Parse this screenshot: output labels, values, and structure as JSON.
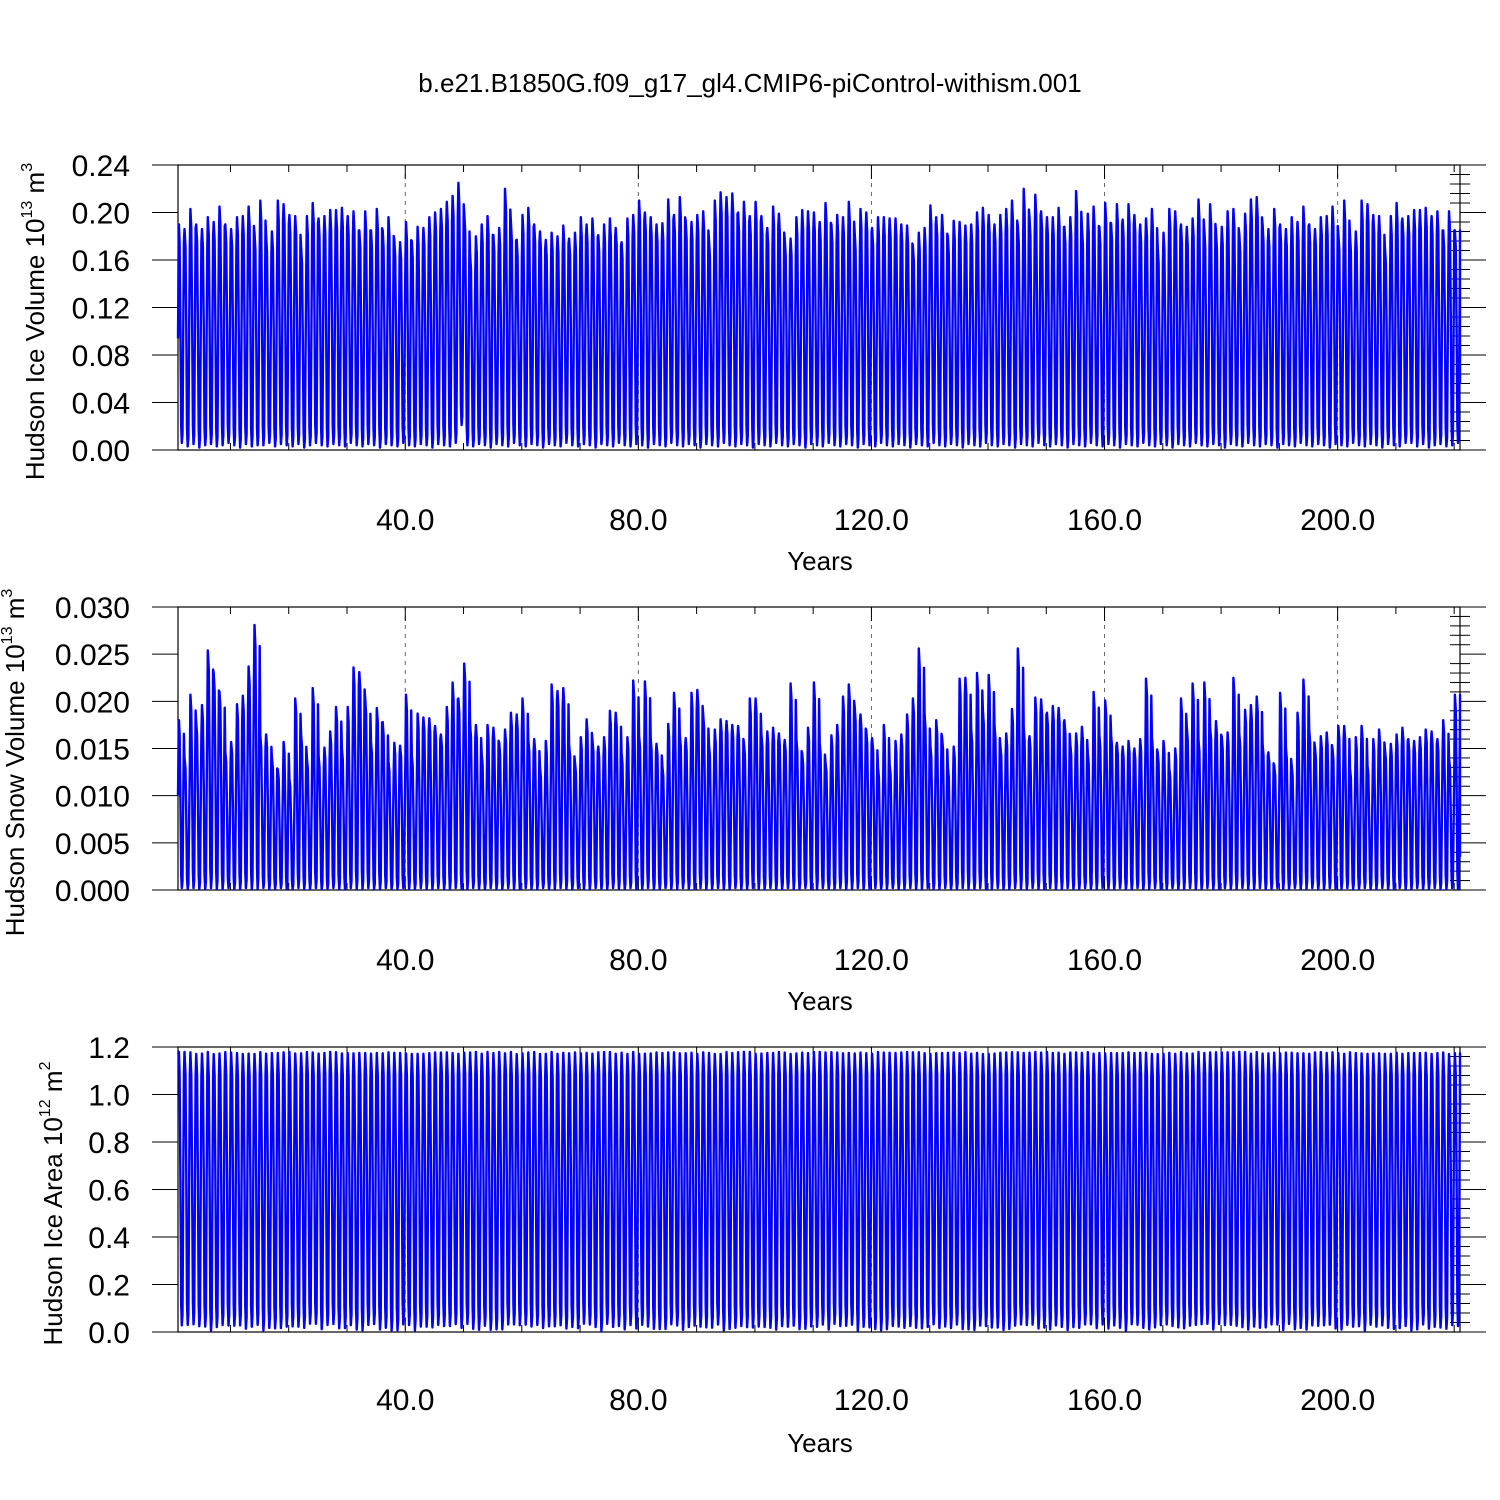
{
  "title": "b.e21.B1850G.f09_g17_gl4.CMIP6-piControl-withism.001",
  "colors": {
    "series": "#0000ff",
    "axes": "#000000",
    "grid": "#666666"
  },
  "chart_data": [
    {
      "type": "line",
      "title": "",
      "ylabel": {
        "text": "Hudson Ice Volume 10",
        "exp": "13",
        "unit": " m",
        "unit_exp": "3"
      },
      "xlabel": "Years",
      "xlim": [
        1,
        221
      ],
      "ylim": [
        0,
        0.24
      ],
      "yticks": [
        "0.00",
        "0.04",
        "0.08",
        "0.12",
        "0.16",
        "0.20",
        "0.24"
      ],
      "xticks": [
        "40.0",
        "80.0",
        "120.0",
        "160.0",
        "200.0"
      ],
      "grid": "dashed vertical at major x ticks",
      "series": [
        {
          "cycle": "annual",
          "start_value": 0.094,
          "end_value": 0.056,
          "annual_max": [
            0.19,
            0.186,
            0.203,
            0.19,
            0.186,
            0.196,
            0.192,
            0.205,
            0.19,
            0.186,
            0.196,
            0.197,
            0.205,
            0.183,
            0.21,
            0.181,
            0.184,
            0.21,
            0.207,
            0.198,
            0.197,
            0.171,
            0.197,
            0.208,
            0.195,
            0.197,
            0.202,
            0.202,
            0.204,
            0.197,
            0.201,
            0.185,
            0.201,
            0.185,
            0.203,
            0.185,
            0.196,
            0.177,
            0.175,
            0.192,
            0.176,
            0.188,
            0.187,
            0.196,
            0.2,
            0.203,
            0.209,
            0.214,
            0.225,
            0.2,
            0.165,
            0.18,
            0.19,
            0.197,
            0.181,
            0.187,
            0.22,
            0.192,
            0.177,
            0.198,
            0.204,
            0.19,
            0.184,
            0.177,
            0.183,
            0.18,
            0.189,
            0.178,
            0.183,
            0.196,
            0.19,
            0.195,
            0.181,
            0.19,
            0.195,
            0.187,
            0.175,
            0.195,
            0.198,
            0.21,
            0.2,
            0.196,
            0.19,
            0.191,
            0.211,
            0.198,
            0.213,
            0.193,
            0.192,
            0.198,
            0.201,
            0.177,
            0.21,
            0.217,
            0.213,
            0.216,
            0.2,
            0.209,
            0.197,
            0.209,
            0.197,
            0.187,
            0.205,
            0.199,
            0.178,
            0.178,
            0.196,
            0.202,
            0.201,
            0.2,
            0.192,
            0.208,
            0.19,
            0.198,
            0.196,
            0.209,
            0.183,
            0.203,
            0.2,
            0.187,
            0.196,
            0.196,
            0.195,
            0.195,
            0.19,
            0.189,
            0.172,
            0.183,
            0.187,
            0.206,
            0.196,
            0.198,
            0.179,
            0.193,
            0.192,
            0.189,
            0.19,
            0.2,
            0.204,
            0.198,
            0.19,
            0.198,
            0.203,
            0.21,
            0.189,
            0.22,
            0.196,
            0.215,
            0.201,
            0.196,
            0.196,
            0.204,
            0.188,
            0.196,
            0.218,
            0.188,
            0.199,
            0.205,
            0.188,
            0.208,
            0.191,
            0.207,
            0.194,
            0.207,
            0.198,
            0.19,
            0.195,
            0.203,
            0.171,
            0.183,
            0.203,
            0.201,
            0.19,
            0.188,
            0.195,
            0.211,
            0.186,
            0.207,
            0.184,
            0.188,
            0.201,
            0.203,
            0.182,
            0.199,
            0.211,
            0.213
          ],
          "annual_min": [
            0.006,
            0.003,
            0.005,
            0.002,
            0.004,
            0.005,
            0.003,
            0.004,
            0.006,
            0.004,
            0.002,
            0.005,
            0.003,
            0.004,
            0.004,
            0.006,
            0.003,
            0.005,
            0.004,
            0.003,
            0.005,
            0.002,
            0.004,
            0.006,
            0.004,
            0.003,
            0.005,
            0.004,
            0.003,
            0.006,
            0.004,
            0.003,
            0.005,
            0.004,
            0.002,
            0.005,
            0.004,
            0.003,
            0.006,
            0.004,
            0.003,
            0.005,
            0.004,
            0.002,
            0.005,
            0.004,
            0.003,
            0.006,
            0.021,
            0.004,
            0.003,
            0.005,
            0.004,
            0.002,
            0.005,
            0.004,
            0.003,
            0.006,
            0.004,
            0.003,
            0.005,
            0.004,
            0.002,
            0.005,
            0.004,
            0.003,
            0.006,
            0.004,
            0.003,
            0.005,
            0.004,
            0.002,
            0.005,
            0.004,
            0.003,
            0.006,
            0.004,
            0.003,
            0.005,
            0.004,
            0.002,
            0.005,
            0.004,
            0.003,
            0.006,
            0.004,
            0.003,
            0.005,
            0.004,
            0.002,
            0.005,
            0.004,
            0.003,
            0.006,
            0.004,
            0.003,
            0.005,
            0.004,
            0.002,
            0.005,
            0.004,
            0.003,
            0.006,
            0.004,
            0.003,
            0.005,
            0.004,
            0.002,
            0.005,
            0.004,
            0.003,
            0.006,
            0.004,
            0.003,
            0.005,
            0.004,
            0.002,
            0.005,
            0.004,
            0.003,
            0.006,
            0.004,
            0.003,
            0.005,
            0.004,
            0.002,
            0.005,
            0.004,
            0.003,
            0.006,
            0.004,
            0.003,
            0.005,
            0.004,
            0.002,
            0.005,
            0.004,
            0.003,
            0.006,
            0.004,
            0.003,
            0.005,
            0.004,
            0.002,
            0.005,
            0.004,
            0.003,
            0.006,
            0.004,
            0.003,
            0.005,
            0.004,
            0.002,
            0.005,
            0.004,
            0.003,
            0.006,
            0.004,
            0.003,
            0.005,
            0.004,
            0.002,
            0.005,
            0.004,
            0.003,
            0.006,
            0.004,
            0.003,
            0.005,
            0.004,
            0.002,
            0.005,
            0.004,
            0.003,
            0.006,
            0.004,
            0.003,
            0.005,
            0.004,
            0.002,
            0.005,
            0.004,
            0.003,
            0.006,
            0.004,
            0.003,
            0.005,
            0.004,
            0.002,
            0.005,
            0.004,
            0.003,
            0.006,
            0.004,
            0.003,
            0.005,
            0.004,
            0.002,
            0.005,
            0.004,
            0.003,
            0.006,
            0.004,
            0.003,
            0.005,
            0.004,
            0.002,
            0.005,
            0.004,
            0.003,
            0.006
          ]
        }
      ]
    },
    {
      "type": "line",
      "title": "",
      "ylabel": {
        "text": "Hudson Snow Volume 10",
        "exp": "13",
        "unit": " m",
        "unit_exp": "3"
      },
      "xlabel": "Years",
      "xlim": [
        1,
        221
      ],
      "ylim": [
        0,
        0.03
      ],
      "yticks": [
        "0.000",
        "0.005",
        "0.010",
        "0.015",
        "0.020",
        "0.025",
        "0.030"
      ],
      "xticks": [
        "40.0",
        "80.0",
        "120.0",
        "160.0",
        "200.0"
      ],
      "grid": "dashed vertical at major x ticks",
      "series": [
        {
          "cycle": "annual",
          "start_value": 0.01,
          "end_value": 0.0035,
          "annual_max": [
            0.018,
            0.014,
            0.0207,
            0.0178,
            0.0196,
            0.0254,
            0.023,
            0.021,
            0.0147,
            0.0157,
            0.0197,
            0.0206,
            0.0237,
            0.0281,
            0.0164,
            0.0165,
            0.014,
            0.0128,
            0.0157,
            0.0118,
            0.0203,
            0.0165,
            0.014,
            0.0214,
            0.0142,
            0.0151,
            0.0168,
            0.0194,
            0.015,
            0.0194,
            0.0236,
            0.0231,
            0.0203,
            0.0157,
            0.0193,
            0.0178,
            0.0136,
            0.0156,
            0.0153,
            0.0207,
            0.0143,
            0.0187,
            0.0183,
            0.0182,
            0.0174,
            0.0165,
            0.0194,
            0.022,
            0.0203,
            0.024,
            0.0176,
            0.0175,
            0.0144,
            0.0175,
            0.0172,
            0.0156,
            0.017,
            0.0188,
            0.0186,
            0.0203,
            0.0159,
            0.016,
            0.013,
            0.0158,
            0.0218,
            0.0211,
            0.0214,
            0.0154,
            0.0135,
            0.0162,
            0.0181,
            0.0159,
            0.0152,
            0.0162,
            0.019,
            0.0188,
            0.0145,
            0.0162,
            0.0222,
            0.0164,
            0.0221,
            0.016,
            0.0155,
            0.0131,
            0.0176,
            0.0209,
            0.0165,
            0.0161,
            0.0209,
            0.0212,
            0.0186,
            0.0154,
            0.017,
            0.0181,
            0.0179,
            0.0175,
            0.0174,
            0.0156,
            0.0203,
            0.0203,
            0.0165,
            0.0168,
            0.0172,
            0.0166,
            0.0159,
            0.0219,
            0.016,
            0.0145,
            0.0172,
            0.022,
            0.0156,
            0.0135,
            0.0164,
            0.0175,
            0.0205,
            0.0218,
            0.0194,
            0.0186,
            0.0169,
            0.0161,
            0.013,
            0.0175,
            0.0133,
            0.0158,
            0.0165,
            0.0186,
            0.0203,
            0.0256,
            0.0186,
            0.0153,
            0.018,
            0.0162,
            0.013,
            0.0152,
            0.0224,
            0.0225,
            0.017,
            0.023,
            0.019,
            0.0228,
            0.0175,
            0.0154,
            0.0166,
            0.0192,
            0.0256,
            0.0172,
            0.0163,
            0.0204,
            0.0202,
            0.0188,
            0.0195,
            0.0193,
            0.018,
            0.0155,
            0.0166,
            0.0173,
            0.0145,
            0.021,
            0.0164,
            0.0201,
            0.0165,
            0.0156,
            0.0152,
            0.0158,
            0.015,
            0.016,
            0.0224,
            0.0162,
            0.0146,
            0.0158,
            0.0129,
            0.015,
            0.0203,
            0.0173,
            0.0219,
            0.0159,
            0.022,
            0.0173,
            0.0179,
            0.0162,
            0.0167,
            0.0225,
            0.0166,
            0.0191,
            0.0196,
            0.0205,
            0.0155,
            0.0146,
            0.0132,
            0.0209,
            0.0151,
            0.0132,
            0.0188,
            0.0223,
            0.017,
            0.0151,
            0.0163,
            0.0167,
            0.015,
            0.0174,
            0.0174,
            0.0129,
            0.0162,
            0.0174,
            0.0132,
            0.016,
            0.017,
            0.015,
            0.0155,
            0.0165,
            0.0172,
            0.016,
            0.0158,
            0.0162,
            0.017,
            0.0168,
            0.016
          ],
          "annual_min": [
            0.0002,
            0.0001,
            0.0002,
            0.0001,
            0.0001,
            0.0002,
            0.0001,
            0.0001,
            0.0002,
            0.0001,
            0.0001,
            0.0002,
            0.0001,
            0.0001,
            0.0002,
            0.0001,
            0.0001,
            0.0002,
            0.0001,
            0.0001,
            0.0002,
            0.0001,
            0.0001,
            0.0002,
            0.0001,
            0.0001,
            0.0002,
            0.0001,
            0.0001,
            0.0002,
            0.0001,
            0.0001,
            0.0002,
            0.0001,
            0.0001,
            0.0002,
            0.0001,
            0.0001,
            0.0002,
            0.0001,
            0.0001,
            0.0002,
            0.0001,
            0.0001,
            0.0002,
            0.0001,
            0.0001,
            0.0002,
            0.0001,
            0.0001,
            0.0002,
            0.0001,
            0.0001,
            0.0002,
            0.0001,
            0.0001,
            0.0002,
            0.0001,
            0.0001,
            0.0002,
            0.0001,
            0.0001,
            0.0002,
            0.0001,
            0.0001,
            0.0002,
            0.0001,
            0.0001,
            0.0002,
            0.0001,
            0.0001,
            0.0002,
            0.0001,
            0.0001,
            0.0002,
            0.0001,
            0.0001,
            0.0002,
            0.0001,
            0.0001,
            0.0002,
            0.0001,
            0.0001,
            0.0002,
            0.0001,
            0.0001,
            0.0002,
            0.0001,
            0.0001,
            0.0002,
            0.0001,
            0.0001,
            0.0002,
            0.0001,
            0.0001,
            0.0002,
            0.0001,
            0.0001,
            0.0002,
            0.0001,
            0.0001,
            0.0002,
            0.0001,
            0.0001,
            0.0002,
            0.0001,
            0.0001,
            0.0002,
            0.0001,
            0.0001,
            0.0002,
            0.0001,
            0.0001,
            0.0002,
            0.0001,
            0.0001,
            0.0002,
            0.0001,
            0.0001,
            0.0002,
            0.0001,
            0.0001,
            0.0002,
            0.0001,
            0.0001,
            0.0002,
            0.0001,
            0.0001,
            0.0002,
            0.0001,
            0.0001,
            0.0002,
            0.0001,
            0.0001,
            0.0002,
            0.0001,
            0.0001,
            0.0002,
            0.0001,
            0.0001,
            0.0002,
            0.0001,
            0.0001,
            0.0002,
            0.0001,
            0.0001,
            0.0002,
            0.0001,
            0.0001,
            0.0002,
            0.0001,
            0.0001,
            0.0002,
            0.0001,
            0.0001,
            0.0002,
            0.0001,
            0.0001,
            0.0002,
            0.0001,
            0.0001,
            0.0002,
            0.0001,
            0.0001,
            0.0002,
            0.0001,
            0.0001,
            0.0002,
            0.0001,
            0.0001,
            0.0002,
            0.0001,
            0.0001,
            0.0002,
            0.0001,
            0.0001,
            0.0002,
            0.0001,
            0.0001,
            0.0002,
            0.0001,
            0.0001,
            0.0002,
            0.0001,
            0.0001,
            0.0002,
            0.0001,
            0.0001,
            0.0002,
            0.0001,
            0.0001,
            0.0002,
            0.0001,
            0.0001,
            0.0002,
            0.0001,
            0.0001,
            0.0002,
            0.0001,
            0.0001,
            0.0002,
            0.0001,
            0.0001,
            0.0002,
            0.0001,
            0.0001,
            0.0002,
            0.0001,
            0.0001,
            0.0002,
            0.0001,
            0.0001,
            0.0002,
            0.0001,
            0.0001,
            0.0002,
            0.0001,
            0.0001,
            0.0002,
            0.0001
          ]
        }
      ]
    },
    {
      "type": "line",
      "title": "",
      "ylabel": {
        "text": "Hudson Ice Area 10",
        "exp": "12",
        "unit": " m",
        "unit_exp": "2"
      },
      "xlabel": "Years",
      "xlim": [
        1,
        221
      ],
      "ylim": [
        0,
        1.2
      ],
      "yticks": [
        "0.0",
        "0.2",
        "0.4",
        "0.6",
        "0.8",
        "1.0",
        "1.2"
      ],
      "xticks": [
        "40.0",
        "80.0",
        "120.0",
        "160.0",
        "200.0"
      ],
      "grid": "dashed vertical at major x ticks",
      "series": [
        {
          "cycle": "annual",
          "start_value": 1.17,
          "end_value": 0.94,
          "annual_max_typical": 1.175,
          "annual_max_range": [
            1.17,
            1.18
          ],
          "annual_min_typical": 0.02,
          "annual_min_range": [
            0.005,
            0.035
          ]
        }
      ]
    }
  ]
}
